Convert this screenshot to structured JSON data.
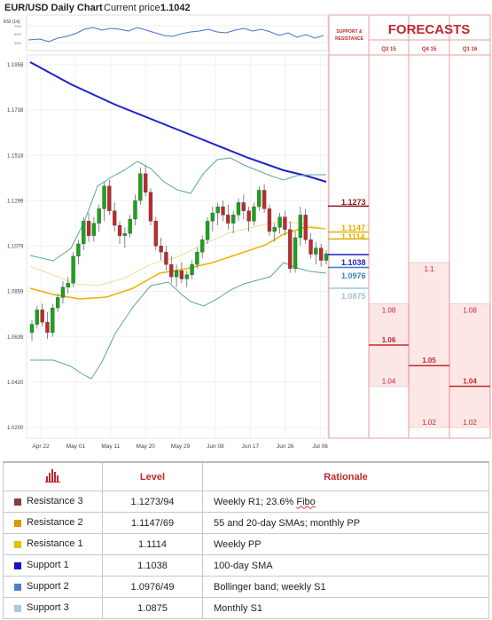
{
  "header": {
    "title": "EUR/USD Daily Chart",
    "price_label": "Current price:",
    "price_value": "1.1042",
    "rsi_label": "RSI (14)",
    "rsi_ticks": [
      "70%",
      "50%",
      "30%"
    ],
    "support_resistance_label": "SUPPORT & RESISTANCE",
    "forecasts_label": "FORECASTS"
  },
  "colors": {
    "accent_red": "#c0282d",
    "sma100": "#1f1fd0",
    "sma": "#e8b400",
    "bollinger": "#5aa89a",
    "bull": "#1aa31a",
    "bear": "#c0282d"
  },
  "chart_data": {
    "type": "candlestick",
    "title": "EUR/USD Daily Chart",
    "y_ticks": [
      "1.1958",
      "1.1738",
      "1.1518",
      "1.1299",
      "1.1079",
      "1.0859",
      "1.0639",
      "1.0420",
      "1.0200"
    ],
    "ylim": [
      1.02,
      1.1958
    ],
    "x_ticks": [
      "Apr 22",
      "May 01",
      "May 11",
      "May 20",
      "May 29",
      "Jun 08",
      "Jun 17",
      "Jun 26",
      "Jul 06"
    ],
    "levels": [
      {
        "label": "1.1273",
        "value": 1.1273,
        "color": "#8b1a1a"
      },
      {
        "label": "1.1147",
        "value": 1.1147,
        "color": "#e0b000"
      },
      {
        "label": "1.1114",
        "value": 1.1114,
        "color": "#e0b000"
      },
      {
        "label": "1.1038",
        "value": 1.1038,
        "color": "#1f1fd0"
      },
      {
        "label": "1.0976",
        "value": 1.0976,
        "color": "#3a7fc0"
      },
      {
        "label": "1.0875",
        "value": 1.0875,
        "color": "#9fc6d8"
      }
    ],
    "forecasts": [
      {
        "period": "Q3 15",
        "high": "1.08",
        "mid": "1.06",
        "low": "1.04",
        "high_v": 1.08,
        "mid_v": 1.06,
        "low_v": 1.04
      },
      {
        "period": "Q4 15",
        "high": "1.1",
        "mid": "1.05",
        "low": "1.02",
        "high_v": 1.1,
        "mid_v": 1.05,
        "low_v": 1.02
      },
      {
        "period": "Q1 16",
        "high": "1.08",
        "mid": "1.04",
        "low": "1.02",
        "high_v": 1.08,
        "mid_v": 1.04,
        "low_v": 1.02
      }
    ],
    "candles": [
      [
        1.066,
        1.072,
        1.062,
        1.07
      ],
      [
        1.07,
        1.079,
        1.068,
        1.077
      ],
      [
        1.077,
        1.08,
        1.069,
        1.071
      ],
      [
        1.071,
        1.076,
        1.063,
        1.066
      ],
      [
        1.066,
        1.08,
        1.064,
        1.078
      ],
      [
        1.078,
        1.085,
        1.076,
        1.083
      ],
      [
        1.083,
        1.091,
        1.08,
        1.088
      ],
      [
        1.088,
        1.093,
        1.085,
        1.09
      ],
      [
        1.09,
        1.105,
        1.088,
        1.103
      ],
      [
        1.103,
        1.111,
        1.099,
        1.109
      ],
      [
        1.109,
        1.122,
        1.106,
        1.12
      ],
      [
        1.12,
        1.124,
        1.11,
        1.113
      ],
      [
        1.113,
        1.122,
        1.11,
        1.119
      ],
      [
        1.119,
        1.128,
        1.115,
        1.126
      ],
      [
        1.126,
        1.139,
        1.12,
        1.137
      ],
      [
        1.137,
        1.14,
        1.123,
        1.125
      ],
      [
        1.125,
        1.129,
        1.115,
        1.118
      ],
      [
        1.118,
        1.12,
        1.109,
        1.113
      ],
      [
        1.113,
        1.117,
        1.107,
        1.114
      ],
      [
        1.114,
        1.123,
        1.112,
        1.121
      ],
      [
        1.121,
        1.133,
        1.118,
        1.13
      ],
      [
        1.13,
        1.146,
        1.128,
        1.143
      ],
      [
        1.143,
        1.147,
        1.132,
        1.134
      ],
      [
        1.134,
        1.136,
        1.118,
        1.12
      ],
      [
        1.12,
        1.122,
        1.106,
        1.108
      ],
      [
        1.108,
        1.112,
        1.101,
        1.105
      ],
      [
        1.105,
        1.108,
        1.096,
        1.099
      ],
      [
        1.099,
        1.103,
        1.09,
        1.093
      ],
      [
        1.093,
        1.099,
        1.088,
        1.096
      ],
      [
        1.096,
        1.1,
        1.09,
        1.092
      ],
      [
        1.092,
        1.096,
        1.088,
        1.094
      ],
      [
        1.094,
        1.101,
        1.092,
        1.099
      ],
      [
        1.099,
        1.107,
        1.097,
        1.105
      ],
      [
        1.105,
        1.113,
        1.102,
        1.111
      ],
      [
        1.111,
        1.122,
        1.109,
        1.12
      ],
      [
        1.12,
        1.127,
        1.115,
        1.124
      ],
      [
        1.124,
        1.129,
        1.118,
        1.127
      ],
      [
        1.127,
        1.13,
        1.12,
        1.123
      ],
      [
        1.123,
        1.128,
        1.116,
        1.119
      ],
      [
        1.119,
        1.125,
        1.114,
        1.123
      ],
      [
        1.123,
        1.131,
        1.12,
        1.129
      ],
      [
        1.129,
        1.133,
        1.121,
        1.125
      ],
      [
        1.125,
        1.127,
        1.115,
        1.12
      ],
      [
        1.12,
        1.129,
        1.118,
        1.127
      ],
      [
        1.127,
        1.137,
        1.125,
        1.135
      ],
      [
        1.135,
        1.138,
        1.124,
        1.126
      ],
      [
        1.126,
        1.128,
        1.113,
        1.115
      ],
      [
        1.115,
        1.119,
        1.11,
        1.117
      ],
      [
        1.117,
        1.124,
        1.114,
        1.122
      ],
      [
        1.122,
        1.125,
        1.113,
        1.116
      ],
      [
        1.116,
        1.12,
        1.095,
        1.097
      ],
      [
        1.097,
        1.115,
        1.095,
        1.112
      ],
      [
        1.112,
        1.127,
        1.108,
        1.123
      ],
      [
        1.123,
        1.126,
        1.109,
        1.111
      ],
      [
        1.111,
        1.114,
        1.102,
        1.104
      ],
      [
        1.104,
        1.11,
        1.099,
        1.107
      ],
      [
        1.107,
        1.109,
        1.098,
        1.101
      ],
      [
        1.101,
        1.106,
        1.099,
        1.1042
      ]
    ]
  },
  "table": {
    "headers": {
      "icon": "bar-chart-icon",
      "level": "Level",
      "rationale": "Rationale"
    },
    "rows": [
      {
        "name": "Resistance 3",
        "level": "1.1273/94",
        "rationale": "Weekly R1; 23.6% ",
        "rationale_extra": "Fibo",
        "color": "#8b3a3a"
      },
      {
        "name": "Resistance 2",
        "level": "1.1147/69",
        "rationale": "55 and 20-day SMAs; monthly PP",
        "rationale_extra": "",
        "color": "#d49a00"
      },
      {
        "name": "Resistance 1",
        "level": "1.1114",
        "rationale": "Weekly PP",
        "rationale_extra": "",
        "color": "#e8c000"
      },
      {
        "name": "Support 1",
        "level": "1.1038",
        "rationale": "100-day SMA",
        "rationale_extra": "",
        "color": "#1515c8"
      },
      {
        "name": "Support 2",
        "level": "1.0976/49",
        "rationale": "Bollinger band; weekly S1",
        "rationale_extra": "",
        "color": "#4a80c4"
      },
      {
        "name": "Support 3",
        "level": "1.0875",
        "rationale": "Monthly S1",
        "rationale_extra": "",
        "color": "#a8c8e4"
      }
    ]
  }
}
